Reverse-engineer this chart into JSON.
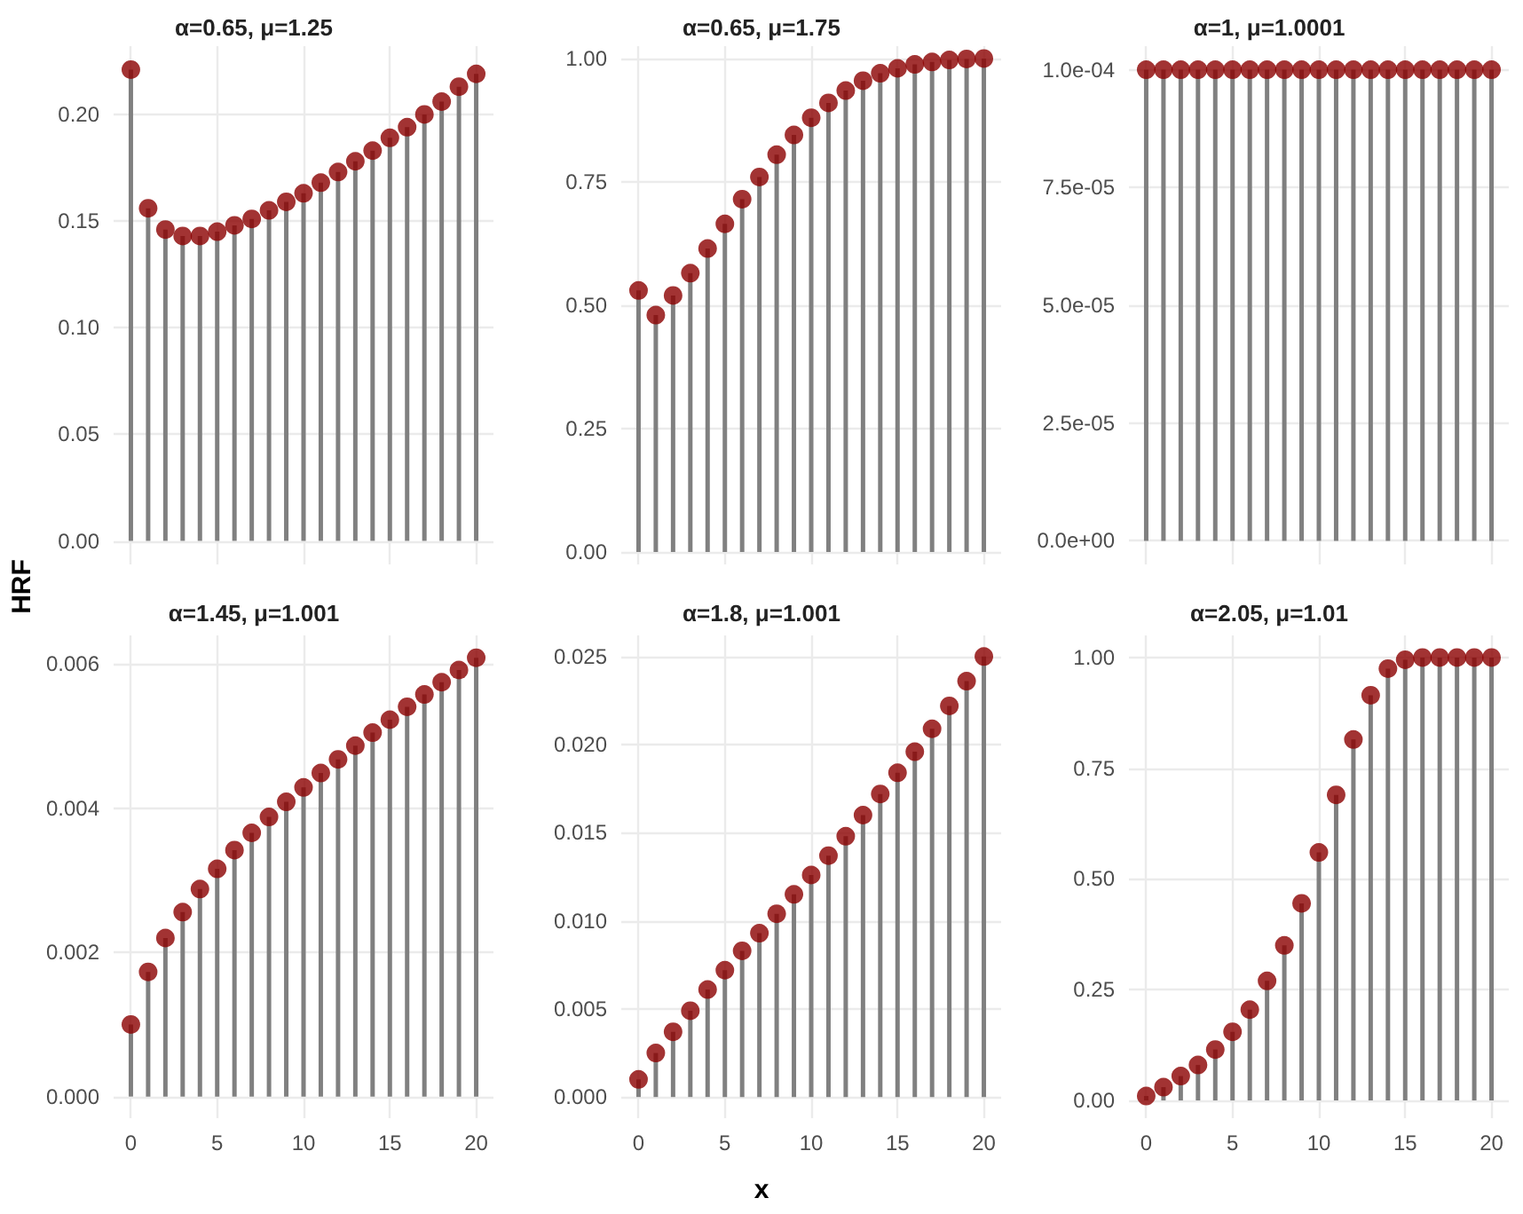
{
  "chart_data": [
    {
      "type": "lollipop",
      "title": "α=0.65, μ=1.25",
      "ylabel": "HRF",
      "color": "#8b0000",
      "marker": "circle",
      "grid": true,
      "tick_labels": "y",
      "x": [
        0,
        1,
        2,
        3,
        4,
        5,
        6,
        7,
        8,
        9,
        10,
        11,
        12,
        13,
        14,
        15,
        16,
        17,
        18,
        19,
        20
      ],
      "values": [
        0.221,
        0.156,
        0.146,
        0.143,
        0.143,
        0.145,
        0.148,
        0.151,
        0.155,
        0.159,
        0.163,
        0.168,
        0.173,
        0.178,
        0.183,
        0.189,
        0.194,
        0.2,
        0.206,
        0.213,
        0.219
      ],
      "xlim": [
        -1,
        21
      ],
      "xticks": [
        0,
        5,
        10,
        15,
        20
      ],
      "ylim": [
        -0.011,
        0.232
      ],
      "yticks": [
        {
          "value": 0,
          "label": "0.00"
        },
        {
          "value": 0.05,
          "label": "0.05"
        },
        {
          "value": 0.1,
          "label": "0.10"
        },
        {
          "value": 0.15,
          "label": "0.15"
        },
        {
          "value": 0.2,
          "label": "0.20"
        }
      ]
    },
    {
      "type": "lollipop",
      "title": "α=0.65, μ=1.75",
      "color": "#8b0000",
      "marker": "circle",
      "grid": true,
      "tick_labels": "y",
      "x": [
        0,
        1,
        2,
        3,
        4,
        5,
        6,
        7,
        8,
        9,
        10,
        11,
        12,
        13,
        14,
        15,
        16,
        17,
        18,
        19,
        20
      ],
      "values": [
        0.53,
        0.48,
        0.52,
        0.565,
        0.615,
        0.665,
        0.715,
        0.76,
        0.805,
        0.845,
        0.88,
        0.91,
        0.935,
        0.955,
        0.97,
        0.98,
        0.988,
        0.993,
        0.997,
        0.999,
        1.0
      ],
      "xlim": [
        -1,
        21
      ],
      "xticks": [
        0,
        5,
        10,
        15,
        20
      ],
      "ylim": [
        -0.025,
        1.025
      ],
      "yticks": [
        {
          "value": 0,
          "label": "0.00"
        },
        {
          "value": 0.25,
          "label": "0.25"
        },
        {
          "value": 0.5,
          "label": "0.50"
        },
        {
          "value": 0.75,
          "label": "0.75"
        },
        {
          "value": 1,
          "label": "1.00"
        }
      ]
    },
    {
      "type": "lollipop",
      "title": "α=1, μ=1.0001",
      "color": "#8b0000",
      "marker": "circle",
      "grid": true,
      "tick_labels": "y",
      "x": [
        0,
        1,
        2,
        3,
        4,
        5,
        6,
        7,
        8,
        9,
        10,
        11,
        12,
        13,
        14,
        15,
        16,
        17,
        18,
        19,
        20
      ],
      "values": [
        0.0001,
        0.0001,
        0.0001,
        0.0001,
        0.0001,
        0.0001,
        0.0001,
        0.0001,
        0.0001,
        0.0001,
        0.0001,
        0.0001,
        0.0001,
        0.0001,
        0.0001,
        0.0001,
        0.0001,
        0.0001,
        0.0001,
        0.0001,
        0.0001
      ],
      "xlim": [
        -1,
        21
      ],
      "xticks": [
        0,
        5,
        10,
        15,
        20
      ],
      "ylim": [
        -5e-06,
        0.000105
      ],
      "yticks": [
        {
          "value": 0,
          "label": "0.0e+00"
        },
        {
          "value": 2.5e-05,
          "label": "2.5e-05"
        },
        {
          "value": 5e-05,
          "label": "5.0e-05"
        },
        {
          "value": 7.5e-05,
          "label": "7.5e-05"
        },
        {
          "value": 0.0001,
          "label": "1.0e-04"
        }
      ]
    },
    {
      "type": "lollipop",
      "title": "α=1.45, μ=1.001",
      "color": "#8b0000",
      "marker": "circle",
      "grid": true,
      "x": [
        0,
        1,
        2,
        3,
        4,
        5,
        6,
        7,
        8,
        9,
        10,
        11,
        12,
        13,
        14,
        15,
        16,
        17,
        18,
        19,
        20
      ],
      "values": [
        0.001,
        0.00173,
        0.0022,
        0.00256,
        0.00288,
        0.00316,
        0.00342,
        0.00366,
        0.00388,
        0.00409,
        0.00429,
        0.00449,
        0.00468,
        0.00487,
        0.00505,
        0.00523,
        0.00541,
        0.00558,
        0.00575,
        0.00592,
        0.00609
      ],
      "xlim": [
        -1,
        21
      ],
      "xticks": [
        0,
        5,
        10,
        15,
        20
      ],
      "ylim": [
        -0.0003,
        0.0064
      ],
      "yticks": [
        {
          "value": 0,
          "label": "0.000"
        },
        {
          "value": 0.002,
          "label": "0.002"
        },
        {
          "value": 0.004,
          "label": "0.004"
        },
        {
          "value": 0.006,
          "label": "0.006"
        }
      ]
    },
    {
      "type": "lollipop",
      "title": "α=1.8, μ=1.001",
      "xlabel": "x",
      "color": "#8b0000",
      "marker": "circle",
      "grid": true,
      "x": [
        0,
        1,
        2,
        3,
        4,
        5,
        6,
        7,
        8,
        9,
        10,
        11,
        12,
        13,
        14,
        15,
        16,
        17,
        18,
        19,
        20
      ],
      "values": [
        0.001,
        0.0025,
        0.0037,
        0.0049,
        0.0061,
        0.0072,
        0.0083,
        0.0093,
        0.0104,
        0.0115,
        0.0126,
        0.0137,
        0.0148,
        0.016,
        0.0172,
        0.0184,
        0.0196,
        0.0209,
        0.0222,
        0.0236,
        0.025
      ],
      "xlim": [
        -1,
        21
      ],
      "xticks": [
        0,
        5,
        10,
        15,
        20
      ],
      "ylim": [
        -0.0012,
        0.0262
      ],
      "yticks": [
        {
          "value": 0,
          "label": "0.000"
        },
        {
          "value": 0.005,
          "label": "0.005"
        },
        {
          "value": 0.01,
          "label": "0.010"
        },
        {
          "value": 0.015,
          "label": "0.015"
        },
        {
          "value": 0.02,
          "label": "0.020"
        },
        {
          "value": 0.025,
          "label": "0.025"
        }
      ]
    },
    {
      "type": "lollipop",
      "title": "α=2.05, μ=1.01",
      "color": "#8b0000",
      "marker": "circle",
      "grid": true,
      "x": [
        0,
        1,
        2,
        3,
        4,
        5,
        6,
        7,
        8,
        9,
        10,
        11,
        12,
        13,
        14,
        15,
        16,
        17,
        18,
        19,
        20
      ],
      "values": [
        0.01,
        0.03,
        0.055,
        0.08,
        0.115,
        0.155,
        0.205,
        0.27,
        0.35,
        0.445,
        0.56,
        0.69,
        0.815,
        0.915,
        0.975,
        0.995,
        1,
        1,
        1,
        1,
        1
      ],
      "xlim": [
        -1,
        21
      ],
      "xticks": [
        0,
        5,
        10,
        15,
        20
      ],
      "ylim": [
        -0.04,
        1.05
      ],
      "yticks": [
        {
          "value": 0,
          "label": "0.00"
        },
        {
          "value": 0.25,
          "label": "0.25"
        },
        {
          "value": 0.5,
          "label": "0.50"
        },
        {
          "value": 0.75,
          "label": "0.75"
        },
        {
          "value": 1,
          "label": "1.00"
        }
      ]
    }
  ]
}
